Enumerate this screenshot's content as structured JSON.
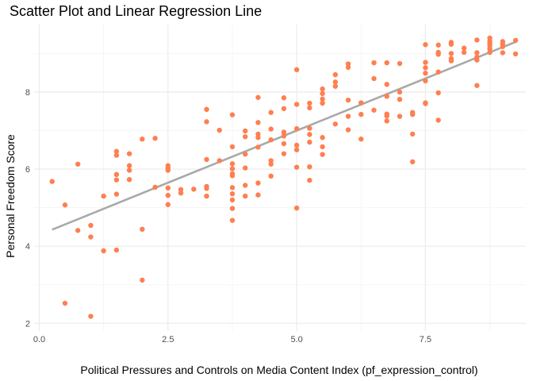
{
  "chart_data": {
    "type": "scatter",
    "title": "Scatter Plot and Linear Regression Line",
    "xlabel": "Political Pressures and Controls on Media Content Index (pf_expression_control)",
    "ylabel": "Personal Freedom Score",
    "xlim": [
      -0.1,
      9.45
    ],
    "ylim": [
      1.8,
      9.75
    ],
    "xticks": [
      0,
      2.5,
      5,
      7.5
    ],
    "xtick_labels": [
      "0.0",
      "2.5",
      "5.0",
      "7.5"
    ],
    "yticks": [
      2,
      4,
      6,
      8
    ],
    "ytick_labels": [
      "2",
      "4",
      "6",
      "8"
    ],
    "grid": true,
    "colors": {
      "points": "#FF7F50",
      "line": "#A9A9A9",
      "grid_major": "#EBEBEB",
      "grid_minor": "#F5F5F5"
    },
    "regression": {
      "x": [
        0.25,
        9.25
      ],
      "y": [
        4.43,
        9.3
      ]
    },
    "points": [
      [
        0.25,
        5.68
      ],
      [
        0.5,
        5.07
      ],
      [
        0.5,
        2.52
      ],
      [
        0.75,
        6.13
      ],
      [
        0.75,
        4.41
      ],
      [
        1.0,
        4.54
      ],
      [
        1.0,
        4.24
      ],
      [
        1.0,
        2.18
      ],
      [
        1.25,
        5.3
      ],
      [
        1.25,
        3.88
      ],
      [
        1.5,
        6.46
      ],
      [
        1.5,
        6.36
      ],
      [
        1.5,
        5.86
      ],
      [
        1.5,
        5.72
      ],
      [
        1.5,
        5.35
      ],
      [
        1.5,
        3.9
      ],
      [
        1.75,
        6.4
      ],
      [
        1.75,
        6.09
      ],
      [
        1.75,
        5.97
      ],
      [
        1.75,
        5.73
      ],
      [
        2.0,
        6.78
      ],
      [
        2.0,
        4.44
      ],
      [
        2.0,
        3.12
      ],
      [
        2.25,
        6.8
      ],
      [
        2.25,
        5.53
      ],
      [
        2.5,
        6.09
      ],
      [
        2.5,
        6.03
      ],
      [
        2.5,
        5.97
      ],
      [
        2.5,
        5.51
      ],
      [
        2.5,
        5.32
      ],
      [
        2.5,
        5.08
      ],
      [
        2.75,
        5.47
      ],
      [
        2.75,
        5.38
      ],
      [
        3.0,
        5.48
      ],
      [
        3.25,
        7.55
      ],
      [
        3.25,
        7.23
      ],
      [
        3.25,
        6.25
      ],
      [
        3.25,
        5.55
      ],
      [
        3.25,
        5.5
      ],
      [
        3.25,
        5.3
      ],
      [
        3.5,
        7.01
      ],
      [
        3.5,
        6.22
      ],
      [
        3.75,
        7.41
      ],
      [
        3.75,
        6.58
      ],
      [
        3.75,
        6.14
      ],
      [
        3.75,
        6.01
      ],
      [
        3.75,
        5.88
      ],
      [
        3.75,
        5.83
      ],
      [
        3.75,
        5.52
      ],
      [
        3.75,
        5.36
      ],
      [
        3.75,
        5.2
      ],
      [
        3.75,
        4.98
      ],
      [
        3.75,
        4.67
      ],
      [
        4.0,
        6.99
      ],
      [
        4.0,
        6.84
      ],
      [
        4.0,
        6.39
      ],
      [
        4.0,
        6.03
      ],
      [
        4.0,
        5.58
      ],
      [
        4.0,
        5.3
      ],
      [
        4.25,
        7.86
      ],
      [
        4.25,
        7.21
      ],
      [
        4.25,
        6.91
      ],
      [
        4.25,
        6.82
      ],
      [
        4.25,
        6.57
      ],
      [
        4.25,
        5.64
      ],
      [
        4.25,
        5.33
      ],
      [
        4.5,
        7.47
      ],
      [
        4.5,
        7.04
      ],
      [
        4.5,
        6.76
      ],
      [
        4.5,
        6.22
      ],
      [
        4.5,
        6.13
      ],
      [
        4.5,
        5.82
      ],
      [
        4.75,
        7.85
      ],
      [
        4.75,
        7.57
      ],
      [
        4.75,
        6.96
      ],
      [
        4.75,
        6.86
      ],
      [
        4.75,
        6.66
      ],
      [
        4.75,
        6.4
      ],
      [
        5.0,
        8.58
      ],
      [
        5.0,
        7.68
      ],
      [
        5.0,
        7.05
      ],
      [
        5.0,
        6.62
      ],
      [
        5.0,
        6.5
      ],
      [
        5.0,
        6.05
      ],
      [
        5.0,
        4.99
      ],
      [
        5.25,
        7.71
      ],
      [
        5.25,
        7.59
      ],
      [
        5.25,
        7.06
      ],
      [
        5.25,
        6.9
      ],
      [
        5.25,
        6.7
      ],
      [
        5.25,
        6.06
      ],
      [
        5.25,
        5.71
      ],
      [
        5.5,
        8.08
      ],
      [
        5.5,
        7.96
      ],
      [
        5.5,
        7.82
      ],
      [
        5.5,
        7.71
      ],
      [
        5.5,
        6.82
      ],
      [
        5.5,
        6.58
      ],
      [
        5.5,
        6.38
      ],
      [
        5.75,
        8.45
      ],
      [
        5.75,
        8.26
      ],
      [
        5.75,
        8.15
      ],
      [
        5.75,
        7.17
      ],
      [
        6.0,
        8.73
      ],
      [
        6.0,
        8.64
      ],
      [
        6.0,
        7.79
      ],
      [
        6.0,
        7.37
      ],
      [
        6.0,
        7.02
      ],
      [
        6.25,
        7.72
      ],
      [
        6.25,
        7.42
      ],
      [
        6.25,
        6.78
      ],
      [
        6.5,
        8.76
      ],
      [
        6.5,
        8.35
      ],
      [
        6.5,
        7.53
      ],
      [
        6.75,
        8.76
      ],
      [
        6.75,
        8.2
      ],
      [
        6.75,
        7.89
      ],
      [
        6.75,
        7.43
      ],
      [
        6.75,
        7.38
      ],
      [
        6.75,
        7.25
      ],
      [
        7.0,
        8.74
      ],
      [
        7.0,
        8.0
      ],
      [
        7.0,
        7.81
      ],
      [
        7.0,
        7.37
      ],
      [
        7.25,
        7.47
      ],
      [
        7.25,
        7.42
      ],
      [
        7.25,
        6.91
      ],
      [
        7.25,
        6.19
      ],
      [
        7.5,
        9.23
      ],
      [
        7.5,
        8.77
      ],
      [
        7.5,
        8.63
      ],
      [
        7.5,
        8.49
      ],
      [
        7.5,
        8.29
      ],
      [
        7.5,
        7.72
      ],
      [
        7.5,
        7.7
      ],
      [
        7.75,
        9.22
      ],
      [
        7.75,
        9.03
      ],
      [
        7.75,
        8.98
      ],
      [
        7.75,
        8.52
      ],
      [
        7.75,
        7.98
      ],
      [
        7.75,
        7.27
      ],
      [
        8.0,
        9.29
      ],
      [
        8.0,
        9.24
      ],
      [
        8.0,
        9.0
      ],
      [
        8.0,
        8.87
      ],
      [
        8.0,
        8.81
      ],
      [
        8.25,
        9.14
      ],
      [
        8.25,
        9.03
      ],
      [
        8.5,
        9.35
      ],
      [
        8.5,
        9.02
      ],
      [
        8.5,
        8.91
      ],
      [
        8.5,
        8.83
      ],
      [
        8.5,
        8.17
      ],
      [
        8.75,
        9.4
      ],
      [
        8.75,
        9.32
      ],
      [
        8.75,
        9.26
      ],
      [
        8.75,
        9.2
      ],
      [
        8.75,
        9.12
      ],
      [
        8.75,
        9.03
      ],
      [
        9.0,
        9.31
      ],
      [
        9.0,
        9.25
      ],
      [
        9.0,
        9.18
      ],
      [
        9.0,
        9.02
      ],
      [
        9.25,
        9.34
      ],
      [
        9.25,
        8.99
      ]
    ]
  }
}
